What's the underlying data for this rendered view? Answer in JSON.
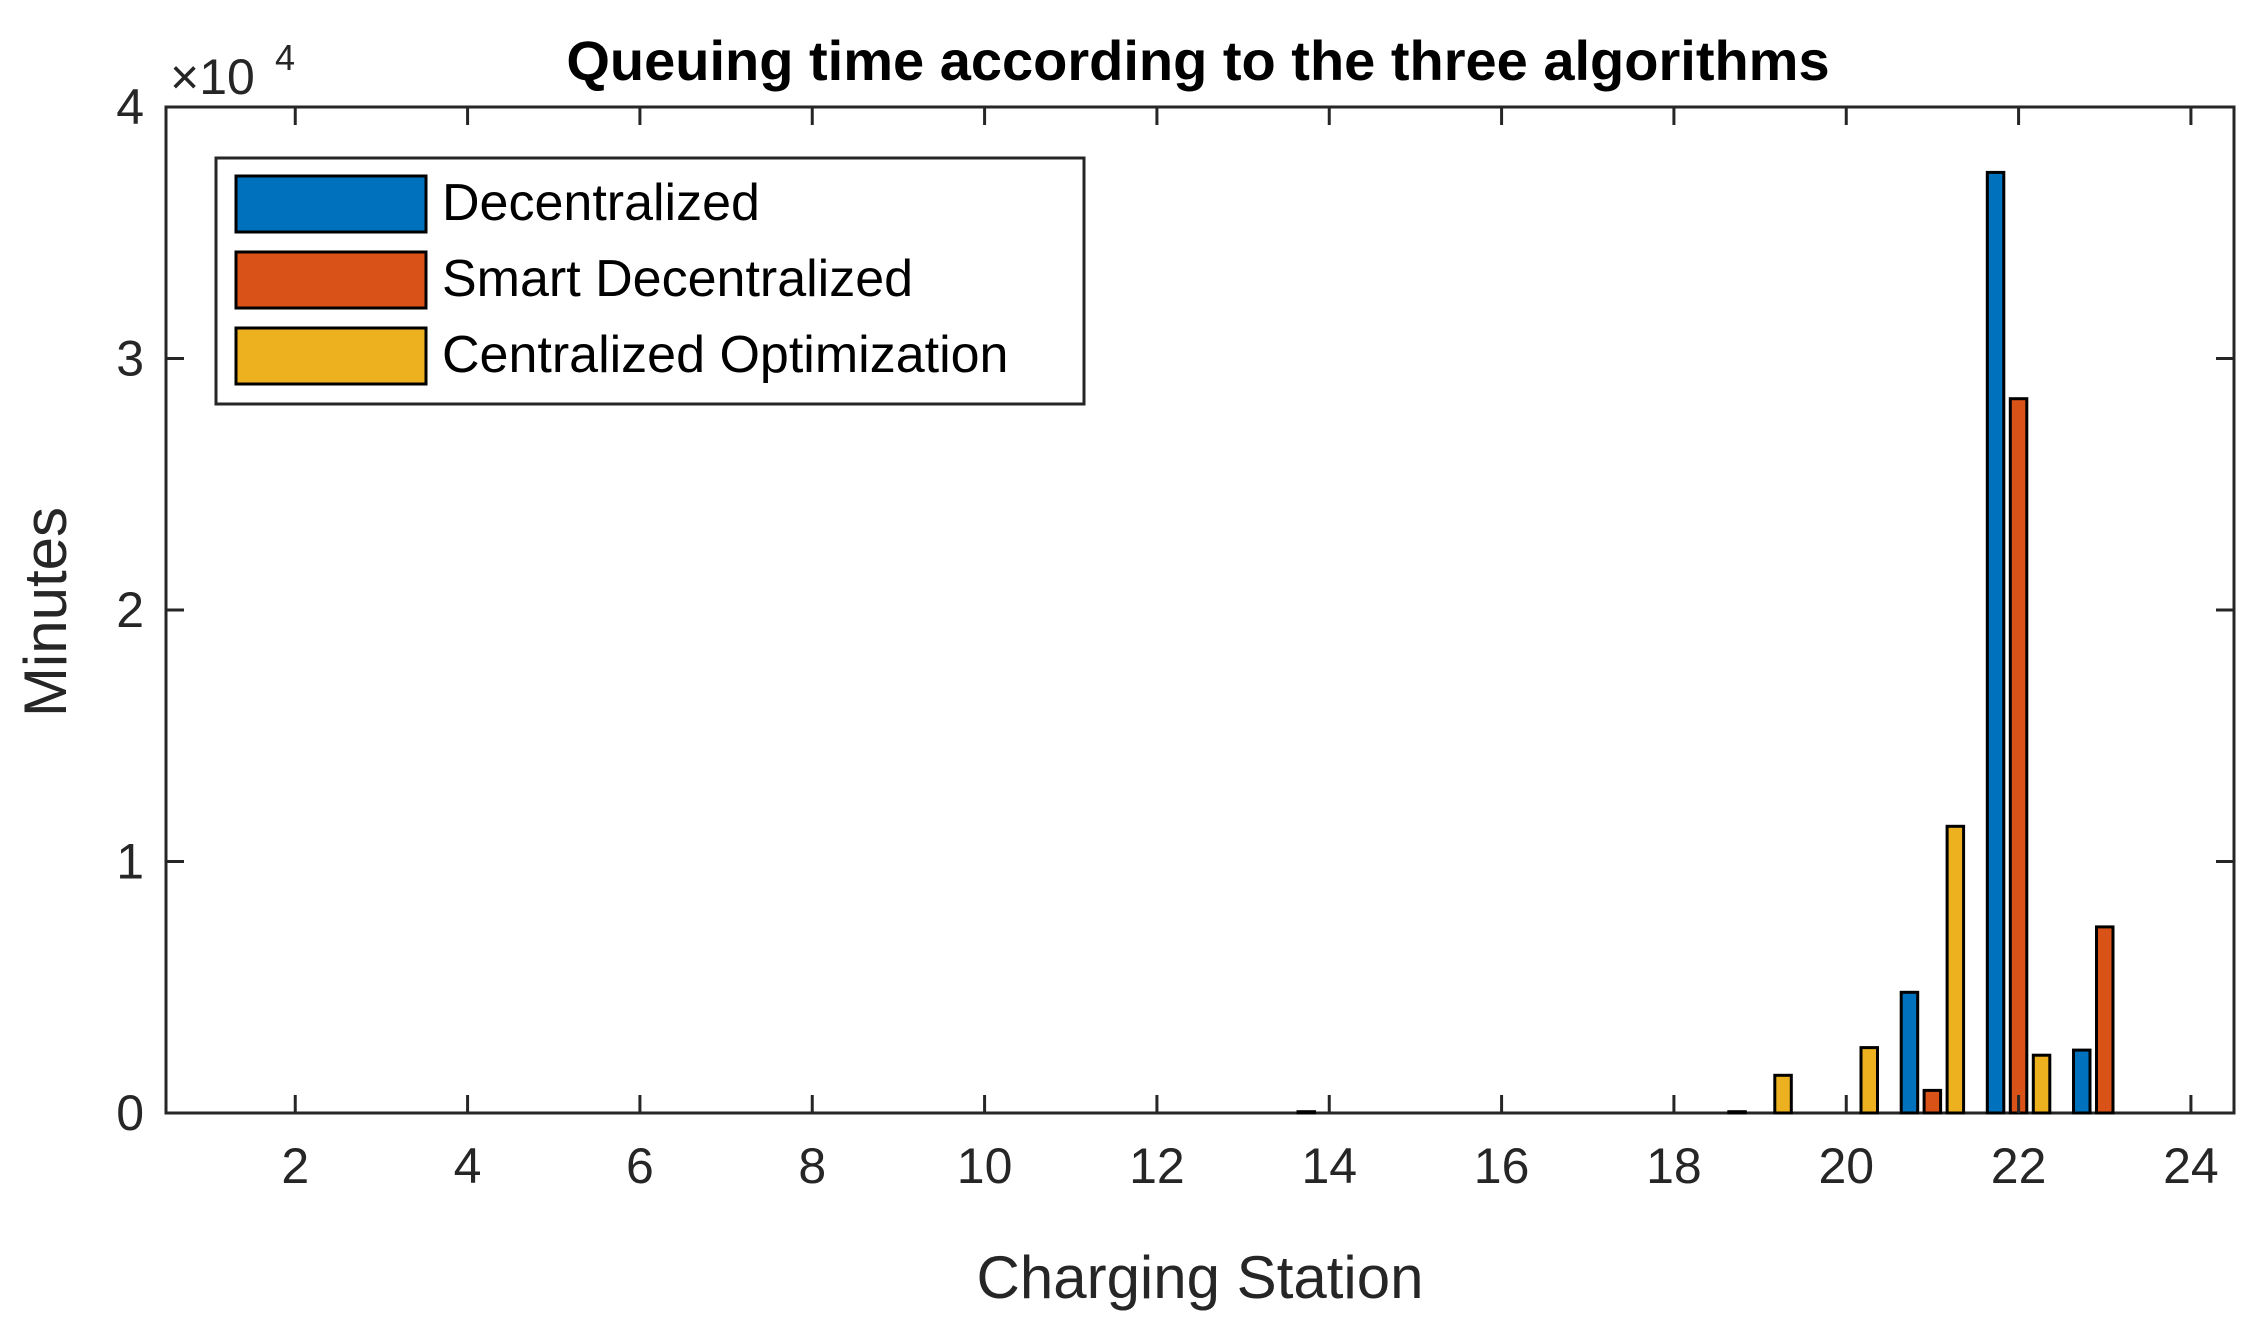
{
  "chart_data": {
    "type": "bar",
    "title": "Queuing time according to the three algorithms",
    "xlabel": "Charging Station",
    "ylabel": "Minutes",
    "y_multiplier_base": "×10",
    "y_multiplier_exp": "4",
    "y_scale": 10000,
    "xlim": [
      0.5,
      24.5
    ],
    "ylim": [
      0,
      40000
    ],
    "xticks": [
      2,
      4,
      6,
      8,
      10,
      12,
      14,
      16,
      18,
      20,
      22,
      24
    ],
    "yticks": [
      0,
      10000,
      20000,
      30000,
      40000
    ],
    "ytick_labels": [
      "0",
      "1",
      "2",
      "3",
      "4"
    ],
    "legend_position": "top-left",
    "grid": false,
    "categories": [
      1,
      2,
      3,
      4,
      5,
      6,
      7,
      8,
      9,
      10,
      11,
      12,
      13,
      14,
      15,
      16,
      17,
      18,
      19,
      20,
      21,
      22,
      23,
      24
    ],
    "series": [
      {
        "name": "Decentralized",
        "color": "#0072BD",
        "values": [
          0,
          0,
          0,
          0,
          0,
          0,
          0,
          0,
          0,
          0,
          0,
          0,
          0,
          50,
          0,
          0,
          0,
          0,
          50,
          0,
          4800,
          37400,
          2500,
          0
        ]
      },
      {
        "name": "Smart Decentralized",
        "color": "#D95319",
        "values": [
          0,
          0,
          0,
          0,
          0,
          0,
          0,
          0,
          0,
          0,
          0,
          0,
          0,
          0,
          0,
          0,
          0,
          0,
          0,
          0,
          900,
          28400,
          7400,
          0
        ]
      },
      {
        "name": "Centralized Optimization",
        "color": "#EDB120",
        "values": [
          0,
          0,
          0,
          0,
          0,
          0,
          0,
          0,
          0,
          0,
          0,
          0,
          0,
          0,
          0,
          0,
          0,
          0,
          1500,
          2600,
          11400,
          2300,
          0,
          0
        ]
      }
    ]
  }
}
